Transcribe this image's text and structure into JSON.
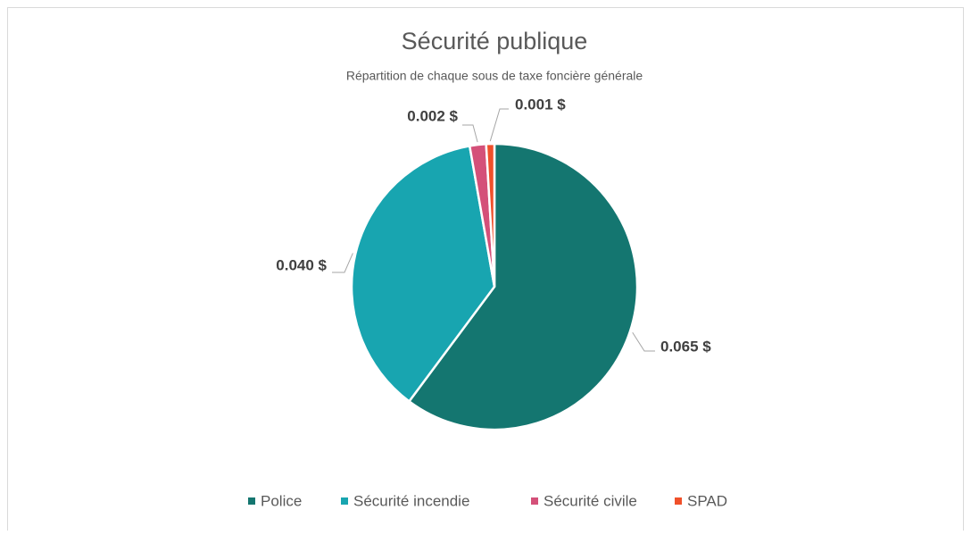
{
  "chart_data": {
    "type": "pie",
    "title": "Sécurité publique",
    "subtitle": "Répartition de chaque sous de taxe foncière générale",
    "categories": [
      "Police",
      "Sécurité incendie",
      "Sécurité civile",
      "SPAD"
    ],
    "values": [
      0.065,
      0.04,
      0.002,
      0.001
    ],
    "value_labels": [
      "0.065 $",
      "0.040 $",
      "0.002 $",
      "0.001 $"
    ],
    "colors": [
      "#147670",
      "#18a5b0",
      "#d45079",
      "#f0502a"
    ],
    "legend": "bottom"
  }
}
